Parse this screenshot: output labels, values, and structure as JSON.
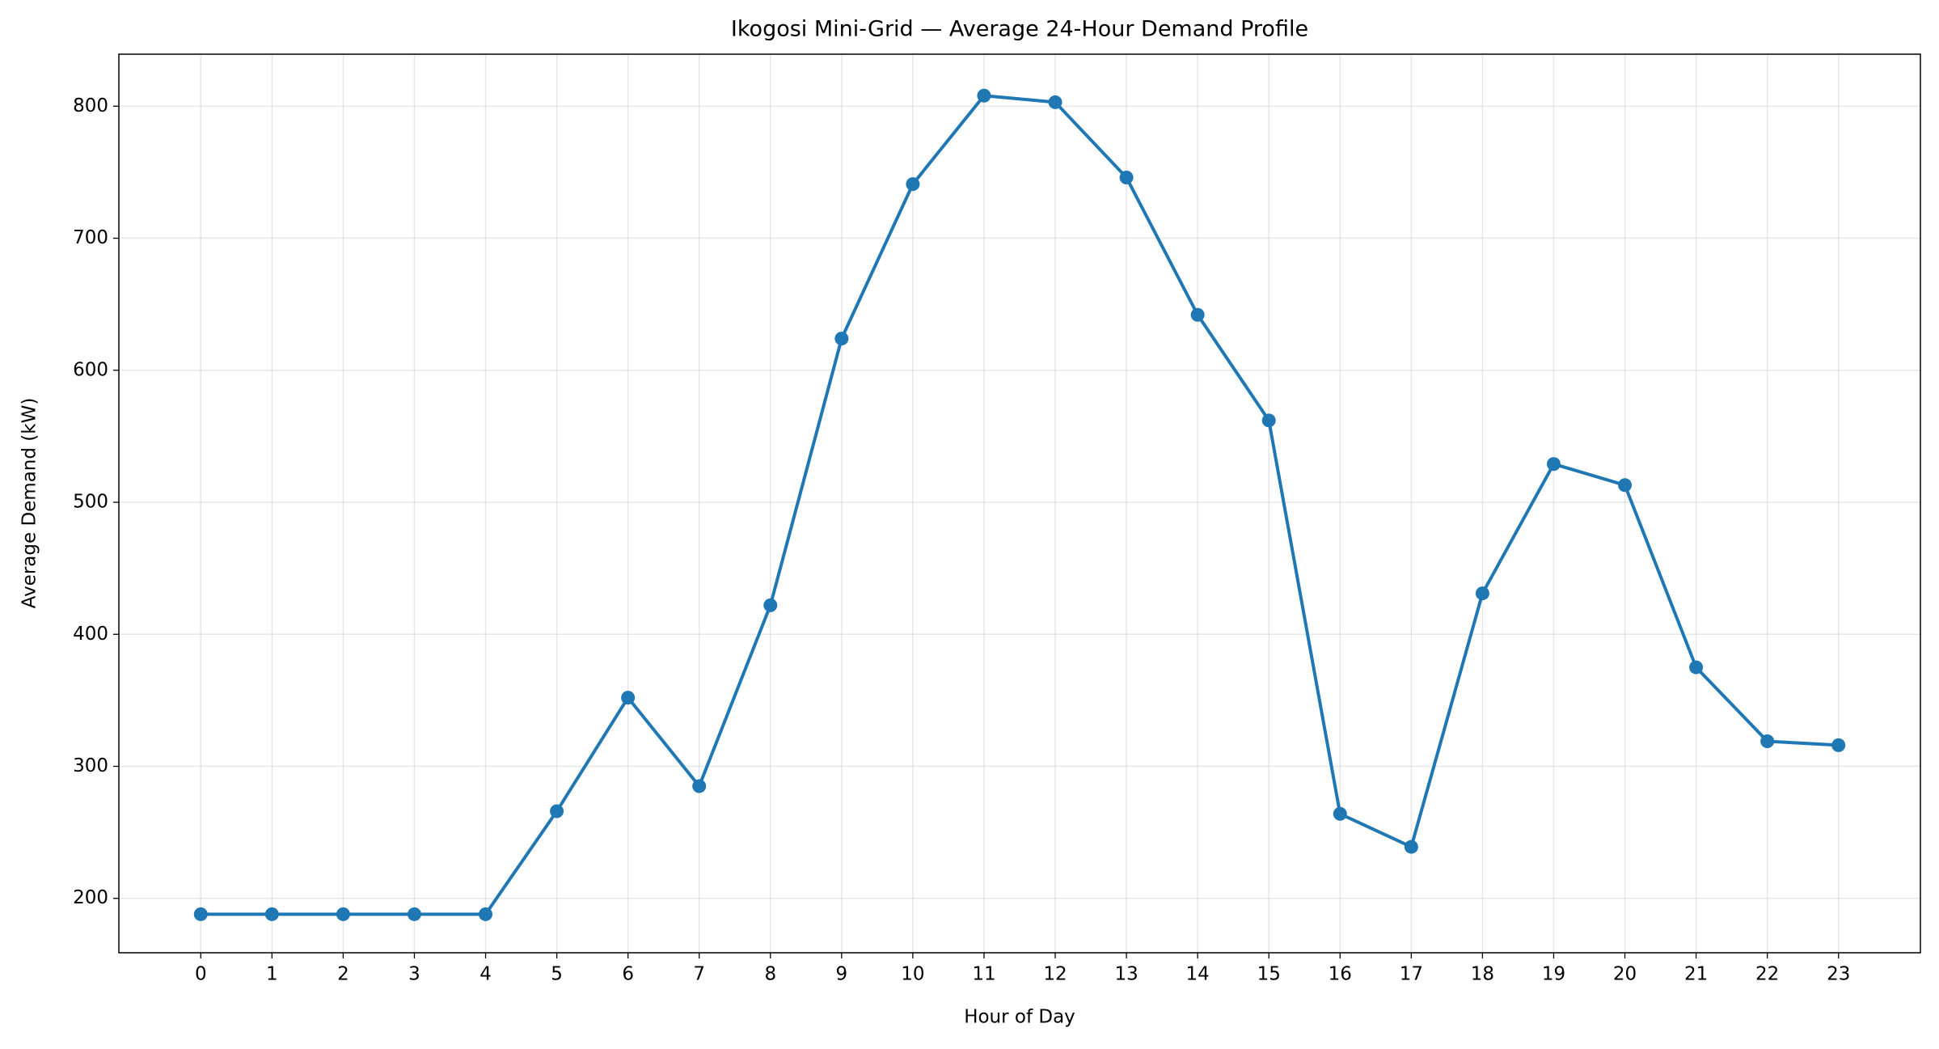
{
  "chart_data": {
    "type": "line",
    "title": "Ikogosi Mini-Grid — Average 24-Hour Demand Profile",
    "x_label": "Hour of Day",
    "y_label": "Average Demand (kW)",
    "x": [
      0,
      1,
      2,
      3,
      4,
      5,
      6,
      7,
      8,
      9,
      10,
      11,
      12,
      13,
      14,
      15,
      16,
      17,
      18,
      19,
      20,
      21,
      22,
      23
    ],
    "values": [
      188,
      188,
      188,
      188,
      188,
      266,
      352,
      285,
      422,
      624,
      741,
      808,
      803,
      746,
      642,
      562,
      264,
      239,
      431,
      529,
      513,
      375,
      319,
      316
    ],
    "color": "#1f77b4",
    "xlim": [
      -1.15,
      24.15
    ],
    "xticks": [
      0,
      1,
      2,
      3,
      4,
      5,
      6,
      7,
      8,
      9,
      10,
      11,
      12,
      13,
      14,
      15,
      16,
      17,
      18,
      19,
      20,
      21,
      22,
      23
    ],
    "ylim": [
      158.8,
      839.4
    ],
    "yticks": [
      200,
      300,
      400,
      500,
      600,
      700,
      800
    ],
    "grid": true,
    "markers": true
  }
}
